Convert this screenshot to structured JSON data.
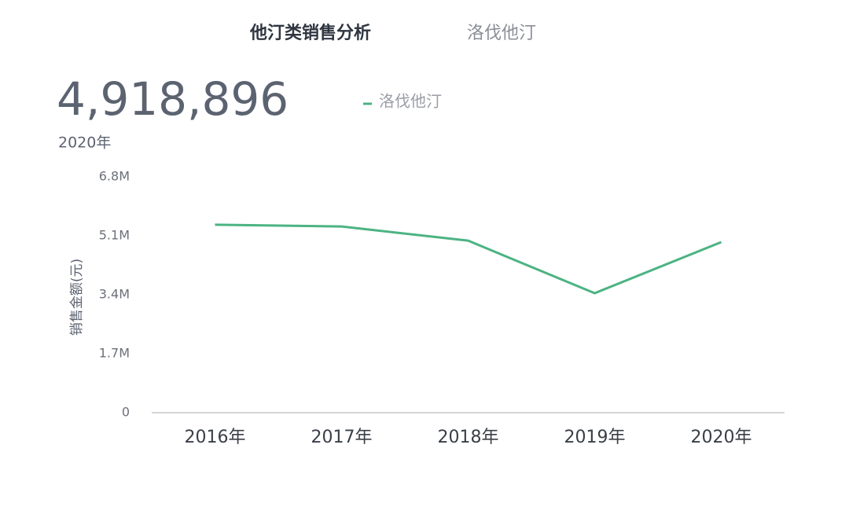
{
  "chart_data": {
    "type": "line",
    "title": "他汀类销售分析",
    "subtitle": "洛伐他汀",
    "kpi": "4,918,896",
    "kpi_caption": "2020年",
    "y_label": "销售金额(元)",
    "categories": [
      "2016年",
      "2017年",
      "2018年",
      "2019年",
      "2020年"
    ],
    "series": [
      {
        "name": "洛伐他汀",
        "color": "#4cb383",
        "values": [
          5420000,
          5370000,
          4960000,
          3445000,
          4918896
        ]
      }
    ],
    "ylim": [
      0,
      6800000
    ],
    "yticks": [
      0,
      {
        "value": 1700000,
        "label": "1.7M"
      },
      {
        "value": 3400000,
        "label": "3.4M"
      },
      {
        "value": 5100000,
        "label": "5.1M"
      },
      {
        "value": 6800000,
        "label": "6.8M"
      }
    ],
    "grid": false
  }
}
